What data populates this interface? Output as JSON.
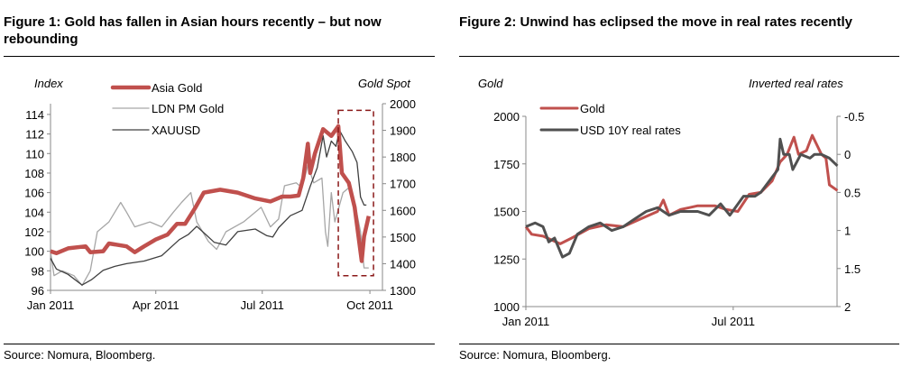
{
  "figures": [
    {
      "title": "Figure 1: Gold has fallen in Asian hours recently – but now rebounding",
      "source": "Source: Nomura, Bloomberg."
    },
    {
      "title": "Figure 2: Unwind has eclipsed the move in real rates recently",
      "source": "Source: Nomura, Bloomberg."
    }
  ],
  "chart_data": [
    {
      "type": "line",
      "ylabel": "Index",
      "y2label": "Gold Spot",
      "ylim": [
        96,
        115.1
      ],
      "yticks": [
        96,
        98,
        100,
        102,
        104,
        106,
        108,
        110,
        112,
        114
      ],
      "y2lim": [
        1300,
        2000
      ],
      "y2ticks": [
        1300,
        1400,
        1500,
        1600,
        1700,
        1800,
        1900,
        2000
      ],
      "xticks": [
        {
          "day": 0,
          "label": "Jan 2011"
        },
        {
          "day": 90,
          "label": "Apr 2011"
        },
        {
          "day": 181,
          "label": "Jul 2011"
        },
        {
          "day": 273,
          "label": "Oct 2011"
        }
      ],
      "x_unit": "days since 1 Jan 2011",
      "annotation": "dashed box highlighting mid-Sep to end-Sep 2011",
      "series": [
        {
          "name": "Asia Gold",
          "axis": "left",
          "color": "#c0504d",
          "width": 4.5,
          "points": [
            [
              0,
              100
            ],
            [
              5,
              99.8
            ],
            [
              15,
              100.3
            ],
            [
              30,
              100.5
            ],
            [
              34,
              99.9
            ],
            [
              45,
              100
            ],
            [
              50,
              100.8
            ],
            [
              65,
              100.5
            ],
            [
              72,
              99.9
            ],
            [
              80,
              100.5
            ],
            [
              90,
              101.2
            ],
            [
              100,
              101.7
            ],
            [
              108,
              102.8
            ],
            [
              115,
              102.8
            ],
            [
              124,
              104.5
            ],
            [
              131,
              106
            ],
            [
              145,
              106.3
            ],
            [
              160,
              106
            ],
            [
              175,
              105.4
            ],
            [
              188,
              105.1
            ],
            [
              198,
              105.6
            ],
            [
              205,
              105.6
            ],
            [
              212,
              105.7
            ],
            [
              216,
              107.5
            ],
            [
              220,
              111
            ],
            [
              222,
              108
            ],
            [
              226,
              110
            ],
            [
              233,
              112.5
            ],
            [
              240,
              111.8
            ],
            [
              246,
              112.8
            ],
            [
              249,
              108
            ],
            [
              255,
              107
            ],
            [
              260,
              104.5
            ],
            [
              266,
              99
            ],
            [
              268,
              101.5
            ],
            [
              272,
              103.6
            ]
          ]
        },
        {
          "name": "LDN PM Gold",
          "axis": "left",
          "color": "#a6a6a6",
          "width": 1.3,
          "points": [
            [
              0,
              100
            ],
            [
              3,
              97.5
            ],
            [
              10,
              98
            ],
            [
              20,
              97.5
            ],
            [
              27,
              96.5
            ],
            [
              34,
              98
            ],
            [
              40,
              102
            ],
            [
              50,
              103
            ],
            [
              60,
              105
            ],
            [
              65,
              104
            ],
            [
              72,
              102.5
            ],
            [
              85,
              103
            ],
            [
              95,
              102.5
            ],
            [
              105,
              104
            ],
            [
              112,
              105
            ],
            [
              120,
              106
            ],
            [
              125,
              103
            ],
            [
              135,
              101
            ],
            [
              142,
              100.2
            ],
            [
              150,
              102
            ],
            [
              165,
              103
            ],
            [
              180,
              104.5
            ],
            [
              188,
              102.5
            ],
            [
              195,
              103.3
            ],
            [
              200,
              106.7
            ],
            [
              210,
              107
            ],
            [
              215,
              106.5
            ],
            [
              220,
              108.8
            ],
            [
              225,
              107
            ],
            [
              232,
              107.5
            ],
            [
              235,
              102
            ],
            [
              237,
              100.5
            ],
            [
              240,
              106
            ],
            [
              243,
              103
            ],
            [
              250,
              106
            ],
            [
              255,
              106.5
            ],
            [
              260,
              105
            ],
            [
              265,
              102
            ],
            [
              268,
              98.3
            ],
            [
              272,
              98.3
            ]
          ]
        },
        {
          "name": "XAUUSD",
          "axis": "right",
          "color": "#404040",
          "width": 1.3,
          "points": [
            [
              0,
              1420
            ],
            [
              5,
              1380
            ],
            [
              15,
              1360
            ],
            [
              27,
              1320
            ],
            [
              35,
              1340
            ],
            [
              45,
              1375
            ],
            [
              55,
              1390
            ],
            [
              65,
              1400
            ],
            [
              80,
              1410
            ],
            [
              95,
              1430
            ],
            [
              110,
              1490
            ],
            [
              118,
              1510
            ],
            [
              125,
              1540
            ],
            [
              130,
              1520
            ],
            [
              140,
              1480
            ],
            [
              150,
              1470
            ],
            [
              160,
              1520
            ],
            [
              175,
              1530
            ],
            [
              185,
              1505
            ],
            [
              190,
              1500
            ],
            [
              195,
              1535
            ],
            [
              205,
              1580
            ],
            [
              215,
              1600
            ],
            [
              222,
              1690
            ],
            [
              228,
              1760
            ],
            [
              233,
              1880
            ],
            [
              236,
              1800
            ],
            [
              240,
              1860
            ],
            [
              244,
              1840
            ],
            [
              247,
              1900
            ],
            [
              252,
              1860
            ],
            [
              258,
              1820
            ],
            [
              262,
              1780
            ],
            [
              265,
              1650
            ],
            [
              268,
              1620
            ],
            [
              270,
              1620
            ]
          ]
        }
      ]
    },
    {
      "type": "line",
      "ylabel": "Gold",
      "y2label": "Inverted real rates",
      "ylim": [
        1000,
        2000
      ],
      "yticks": [
        1000,
        1250,
        1500,
        1750,
        2000
      ],
      "y2lim": [
        -0.5,
        2
      ],
      "y2_inverted": true,
      "y2ticks": [
        -0.5,
        0,
        0.5,
        1,
        1.5,
        2
      ],
      "xticks": [
        {
          "day": 0,
          "label": "Jan 2011"
        },
        {
          "day": 181,
          "label": "Jul 2011"
        }
      ],
      "x_unit": "days since 1 Jan 2011",
      "series": [
        {
          "name": "Gold",
          "axis": "left",
          "color": "#c0504d",
          "width": 3,
          "points": [
            [
              0,
              1420
            ],
            [
              5,
              1380
            ],
            [
              15,
              1370
            ],
            [
              30,
              1330
            ],
            [
              40,
              1360
            ],
            [
              55,
              1410
            ],
            [
              70,
              1430
            ],
            [
              85,
              1420
            ],
            [
              100,
              1460
            ],
            [
              115,
              1500
            ],
            [
              120,
              1560
            ],
            [
              125,
              1480
            ],
            [
              135,
              1510
            ],
            [
              150,
              1530
            ],
            [
              165,
              1530
            ],
            [
              175,
              1510
            ],
            [
              185,
              1500
            ],
            [
              195,
              1590
            ],
            [
              205,
              1600
            ],
            [
              215,
              1660
            ],
            [
              222,
              1760
            ],
            [
              228,
              1800
            ],
            [
              234,
              1890
            ],
            [
              238,
              1800
            ],
            [
              245,
              1820
            ],
            [
              250,
              1900
            ],
            [
              258,
              1800
            ],
            [
              262,
              1780
            ],
            [
              265,
              1640
            ],
            [
              272,
              1610
            ]
          ]
        },
        {
          "name": "USD 10Y real rates",
          "axis": "right",
          "color": "#505050",
          "width": 3,
          "points": [
            [
              0,
              0.95
            ],
            [
              8,
              0.9
            ],
            [
              15,
              0.95
            ],
            [
              20,
              1.15
            ],
            [
              25,
              1.1
            ],
            [
              32,
              1.35
            ],
            [
              38,
              1.3
            ],
            [
              45,
              1.05
            ],
            [
              55,
              0.95
            ],
            [
              65,
              0.9
            ],
            [
              75,
              1.0
            ],
            [
              85,
              0.95
            ],
            [
              95,
              0.85
            ],
            [
              105,
              0.75
            ],
            [
              115,
              0.7
            ],
            [
              125,
              0.8
            ],
            [
              135,
              0.75
            ],
            [
              150,
              0.75
            ],
            [
              160,
              0.8
            ],
            [
              170,
              0.65
            ],
            [
              178,
              0.8
            ],
            [
              190,
              0.55
            ],
            [
              200,
              0.55
            ],
            [
              205,
              0.5
            ],
            [
              215,
              0.3
            ],
            [
              220,
              0.2
            ],
            [
              222,
              -0.2
            ],
            [
              225,
              0
            ],
            [
              230,
              0
            ],
            [
              233,
              0.2
            ],
            [
              240,
              0
            ],
            [
              248,
              0.05
            ],
            [
              252,
              0
            ],
            [
              258,
              0
            ],
            [
              265,
              0.05
            ],
            [
              272,
              0.15
            ]
          ]
        }
      ]
    }
  ]
}
